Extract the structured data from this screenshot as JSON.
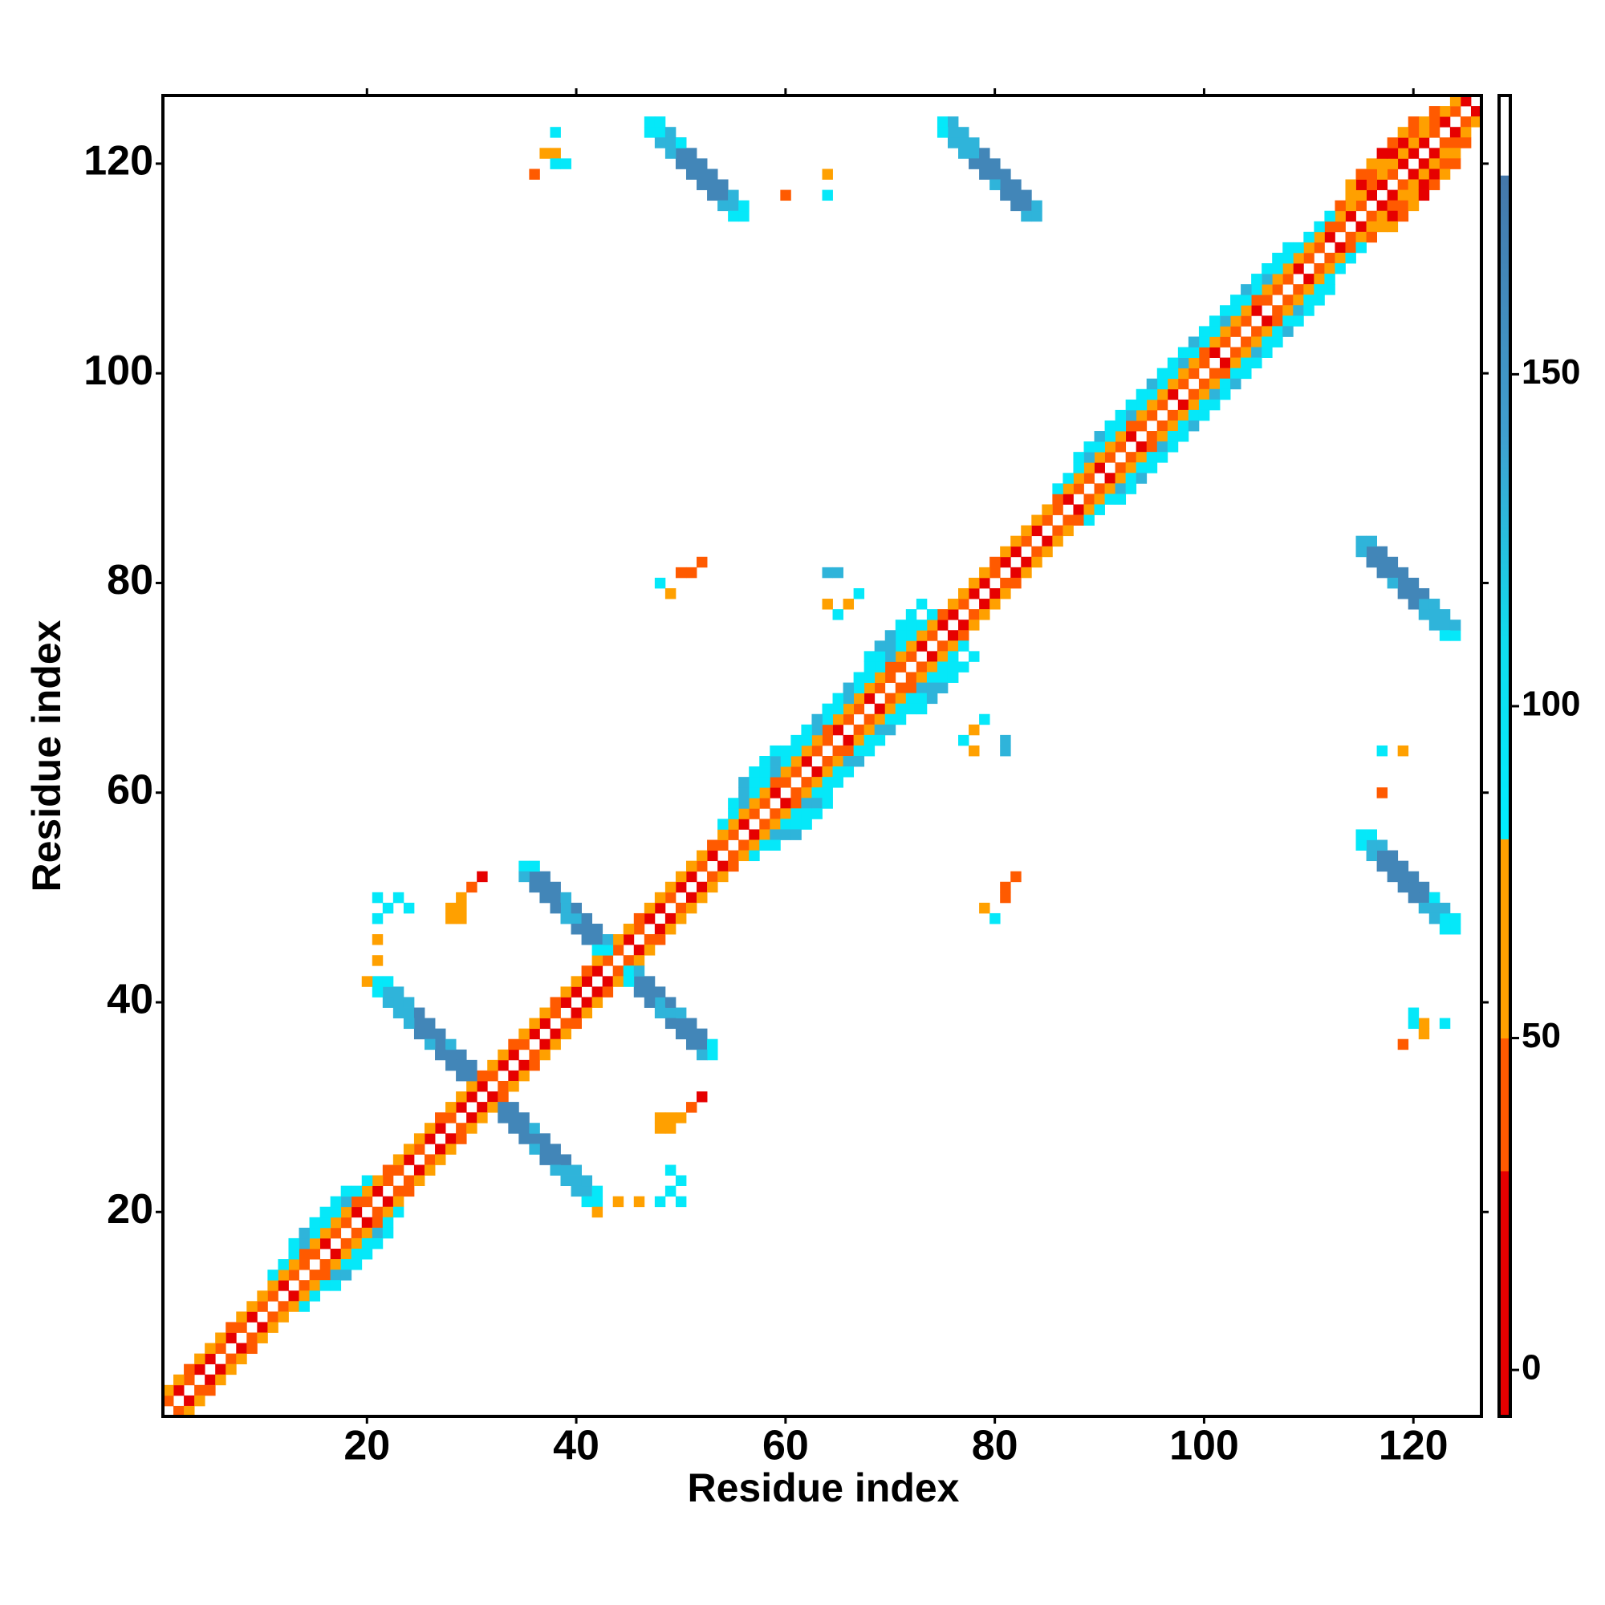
{
  "chart_data": {
    "type": "heatmap",
    "xlabel": "Residue index",
    "ylabel": "Residue index",
    "xlim": [
      0.5,
      126.5
    ],
    "ylim": [
      0.5,
      126.5
    ],
    "xticks": [
      20,
      40,
      60,
      80,
      100,
      120
    ],
    "yticks": [
      20,
      40,
      60,
      80,
      100,
      120
    ],
    "symmetric": true,
    "diagonals": [
      {
        "offset": 1,
        "start": 1,
        "values": [
          40,
          15,
          40,
          15,
          15,
          40,
          15,
          40,
          15,
          40,
          40,
          15,
          40,
          40,
          40,
          15,
          40,
          40,
          15,
          40,
          15,
          40,
          40,
          15,
          40,
          15,
          15,
          40,
          15,
          15,
          15,
          40,
          15,
          15,
          40,
          15,
          15,
          40,
          15,
          15,
          15,
          15,
          40,
          40,
          15,
          40,
          15,
          15,
          40,
          15,
          15,
          40,
          15,
          40,
          40,
          15,
          40,
          40,
          15,
          40,
          40,
          15,
          40,
          40,
          15,
          40,
          40,
          15,
          40,
          40,
          40,
          40,
          15,
          40,
          15,
          15,
          40,
          15,
          15,
          40,
          15,
          15,
          40,
          15,
          40,
          40,
          15,
          40,
          40,
          15,
          40,
          40,
          15,
          40,
          40,
          40,
          15,
          40,
          40,
          40,
          15,
          40,
          40,
          40,
          15,
          40,
          40,
          40,
          15,
          40,
          40,
          15,
          40,
          15,
          40,
          15,
          15,
          40,
          15,
          15,
          15,
          40,
          15,
          40,
          15
        ]
      },
      {
        "offset": 2,
        "start": 1,
        "values": [
          65,
          65,
          40,
          65,
          65,
          65,
          40,
          65,
          65,
          65,
          65,
          65,
          65,
          40,
          65,
          65,
          65,
          65,
          40,
          65,
          65,
          40,
          65,
          65,
          65,
          65,
          40,
          65,
          65,
          65,
          40,
          65,
          65,
          40,
          65,
          65,
          65,
          40,
          65,
          65,
          40,
          65,
          65,
          65,
          65,
          40,
          65,
          65,
          65,
          65,
          65,
          65,
          40,
          65,
          65,
          65,
          65,
          65,
          40,
          65,
          65,
          65,
          65,
          40,
          65,
          65,
          65,
          65,
          65,
          40,
          65,
          65,
          65,
          65,
          40,
          65,
          65,
          65,
          65,
          40,
          65,
          65,
          65,
          65,
          65,
          40,
          65,
          65,
          65,
          65,
          65,
          65,
          40,
          65,
          65,
          65,
          65,
          65,
          65,
          40,
          65,
          65,
          65,
          65,
          40,
          65,
          65,
          65,
          65,
          65,
          65,
          40,
          65,
          65,
          65,
          40,
          65,
          65,
          65,
          65,
          65,
          40,
          65,
          65
        ]
      },
      {
        "offset": 3,
        "start": 11,
        "values": [
          90,
          90,
          90,
          130,
          90,
          90,
          90,
          130,
          90,
          90
        ]
      },
      {
        "offset": 3,
        "start": 54,
        "values": [
          90,
          90,
          130,
          90,
          90,
          130,
          90,
          90,
          90,
          130,
          90,
          90,
          130,
          90,
          90,
          90,
          130,
          90,
          90,
          90,
          90
        ]
      },
      {
        "offset": 3,
        "start": 86,
        "values": [
          90,
          90,
          90,
          130,
          90,
          90,
          90,
          130,
          90,
          90,
          90,
          90,
          130,
          90,
          90,
          90,
          130,
          90,
          90,
          90,
          130,
          90,
          90,
          90,
          90,
          90,
          90
        ]
      },
      {
        "offset": 3,
        "start": 113,
        "values": [
          40,
          65,
          15,
          40,
          65,
          15,
          15,
          40,
          65,
          40
        ]
      },
      {
        "offset": 4,
        "start": 13,
        "values": [
          90,
          130,
          90,
          90,
          90,
          90
        ]
      },
      {
        "offset": 4,
        "start": 55,
        "values": [
          90,
          130,
          90,
          90,
          130,
          90,
          90,
          90,
          130,
          90,
          90,
          130,
          90,
          90,
          90,
          130,
          90,
          90
        ]
      },
      {
        "offset": 4,
        "start": 88,
        "values": [
          90,
          90,
          130,
          90,
          90,
          90,
          90,
          130,
          90,
          90,
          90,
          130,
          90,
          90,
          90,
          90,
          130,
          90,
          90,
          90,
          90
        ]
      },
      {
        "offset": 4,
        "start": 114,
        "values": [
          65,
          40,
          65,
          15,
          40,
          65,
          40
        ]
      },
      {
        "offset": 5,
        "start": 56,
        "values": [
          130,
          90,
          90,
          90
        ]
      },
      {
        "offset": 5,
        "start": 68,
        "values": [
          90,
          130,
          130,
          90,
          90,
          90
        ]
      }
    ],
    "strands": [
      {
        "start": [
          21,
          42
        ],
        "values": [
          90,
          130,
          130,
          130,
          165,
          165,
          165,
          165,
          165,
          165
        ]
      },
      {
        "start": [
          22,
          42
        ],
        "values": [
          90,
          130,
          130,
          165,
          165,
          165,
          130,
          165,
          165
        ]
      },
      {
        "start": [
          21,
          41
        ],
        "values": [
          90,
          130,
          130,
          130,
          165,
          130,
          165,
          165,
          165
        ]
      },
      {
        "start": [
          35,
          53
        ],
        "values": [
          90,
          165,
          165,
          165,
          130,
          130,
          165,
          165,
          90
        ]
      },
      {
        "start": [
          36,
          53
        ],
        "values": [
          90,
          165,
          165,
          130,
          165,
          165,
          165,
          130
        ]
      },
      {
        "start": [
          35,
          52
        ],
        "values": [
          130,
          165,
          165,
          165,
          130,
          165,
          165,
          90
        ]
      },
      {
        "start": [
          47,
          124
        ],
        "values": [
          90,
          90,
          130,
          165,
          165,
          165,
          165,
          165,
          130,
          90
        ]
      },
      {
        "start": [
          48,
          124
        ],
        "values": [
          90,
          130,
          165,
          165,
          165,
          165,
          165,
          130,
          90
        ]
      },
      {
        "start": [
          47,
          123
        ],
        "values": [
          90,
          130,
          130,
          165,
          165,
          165,
          165,
          130,
          90
        ]
      },
      {
        "start": [
          75,
          124
        ],
        "values": [
          90,
          130,
          130,
          130,
          165,
          165,
          165,
          165,
          165,
          130
        ]
      },
      {
        "start": [
          76,
          124
        ],
        "values": [
          130,
          130,
          130,
          165,
          165,
          165,
          165,
          165,
          130
        ]
      },
      {
        "start": [
          75,
          123
        ],
        "values": [
          90,
          130,
          130,
          165,
          165,
          130,
          165,
          165,
          130
        ]
      }
    ],
    "cells": [
      [
        38,
        123,
        90
      ],
      [
        37,
        121,
        65
      ],
      [
        38,
        121,
        65
      ],
      [
        38,
        120,
        90
      ],
      [
        39,
        120,
        90
      ],
      [
        36,
        119,
        40
      ],
      [
        50,
        122,
        90
      ],
      [
        64,
        119,
        65
      ],
      [
        64,
        117,
        90
      ],
      [
        60,
        117,
        40
      ],
      [
        49,
        79,
        65
      ],
      [
        48,
        80,
        90
      ],
      [
        50,
        81,
        40
      ],
      [
        51,
        81,
        40
      ],
      [
        52,
        82,
        40
      ],
      [
        64,
        81,
        130
      ],
      [
        65,
        81,
        130
      ],
      [
        64,
        78,
        65
      ],
      [
        65,
        77,
        90
      ],
      [
        67,
        79,
        90
      ],
      [
        66,
        78,
        65
      ],
      [
        28,
        48,
        65
      ],
      [
        29,
        48,
        65
      ],
      [
        28,
        49,
        65
      ],
      [
        29,
        49,
        65
      ],
      [
        29,
        50,
        65
      ],
      [
        30,
        51,
        40
      ],
      [
        31,
        52,
        15
      ],
      [
        21,
        50,
        90
      ],
      [
        22,
        49,
        90
      ],
      [
        23,
        50,
        90
      ],
      [
        24,
        49,
        90
      ],
      [
        21,
        48,
        90
      ],
      [
        21,
        46,
        65
      ],
      [
        21,
        44,
        65
      ],
      [
        20,
        42,
        65
      ]
    ],
    "colorbar": {
      "lim": [
        -7,
        192
      ],
      "ticks": [
        0,
        50,
        100,
        150
      ],
      "stops": [
        [
          -7,
          "#e60000"
        ],
        [
          30,
          "#e60000"
        ],
        [
          30,
          "#ff5a00"
        ],
        [
          50,
          "#ff5a00"
        ],
        [
          50,
          "#ffa000"
        ],
        [
          80,
          "#ffa000"
        ],
        [
          80,
          "#00eeff"
        ],
        [
          110,
          "#10dcee"
        ],
        [
          140,
          "#3fa0d0"
        ],
        [
          180,
          "#4477aa"
        ],
        [
          180,
          "#ffffff"
        ],
        [
          192,
          "#ffffff"
        ]
      ]
    }
  }
}
